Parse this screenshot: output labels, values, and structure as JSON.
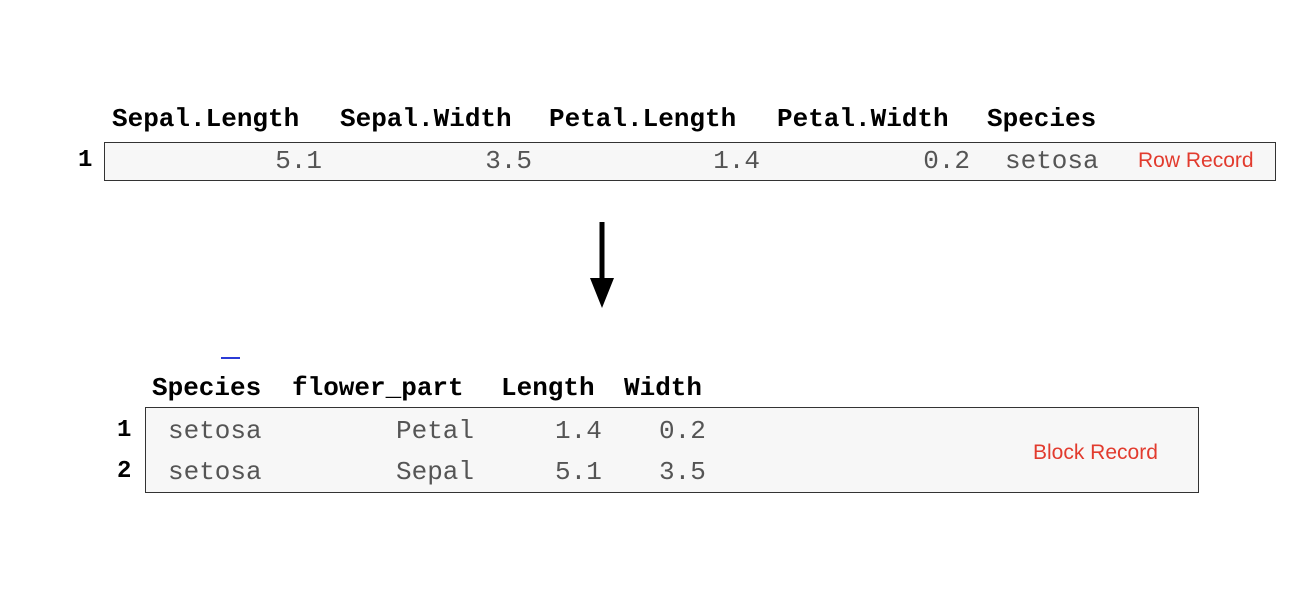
{
  "row_table": {
    "headers": [
      "Sepal.Length",
      "Sepal.Width",
      "Petal.Length",
      "Petal.Width",
      "Species"
    ],
    "rows": [
      {
        "index": "1",
        "values": [
          "5.1",
          "3.5",
          "1.4",
          "0.2",
          "setosa"
        ]
      }
    ],
    "label": "Row Record"
  },
  "block_table": {
    "headers": [
      "Species",
      "flower_part",
      "Length",
      "Width"
    ],
    "rows": [
      {
        "index": "1",
        "values": [
          "setosa",
          "Petal",
          "1.4",
          "0.2"
        ]
      },
      {
        "index": "2",
        "values": [
          "setosa",
          "Sepal",
          "5.1",
          "3.5"
        ]
      }
    ],
    "label": "Block Record"
  }
}
